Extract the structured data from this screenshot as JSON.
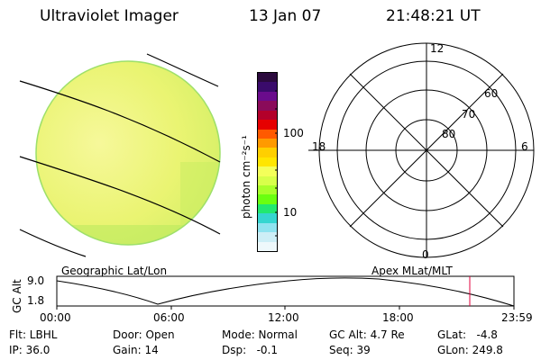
{
  "header": {
    "title": "Ultraviolet Imager",
    "date": "13 Jan 07",
    "time": "21:48:21 UT"
  },
  "colorbar": {
    "label": "photon cm⁻²s⁻¹",
    "ticks": [
      "100",
      "10"
    ],
    "colors": [
      "#2b0a3d",
      "#3a0b6b",
      "#6a0c8c",
      "#8a0b5a",
      "#b3002a",
      "#e60000",
      "#ff5a00",
      "#ff9a00",
      "#ffcf00",
      "#ffe600",
      "#f4ff5a",
      "#d8ff4a",
      "#a8ff2a",
      "#6aff10",
      "#22e870",
      "#35d6d0",
      "#8fe3ef",
      "#cdeef6",
      "#eef8fb"
    ]
  },
  "left_map": {
    "label": "Geographic Lat/Lon"
  },
  "polar": {
    "label": "Apex MLat/MLT",
    "mlt_labels": [
      "12",
      "18",
      "6",
      "0"
    ],
    "lat_labels": [
      "60",
      "70",
      "80"
    ]
  },
  "altitude_plot": {
    "ylabel": "GC Alt",
    "ytick_top": "9.0",
    "ytick_bottom": "1.8",
    "xticks": [
      "00:00",
      "06:00",
      "12:00",
      "18:00",
      "23:59"
    ]
  },
  "info": {
    "flt": "Flt: LBHL",
    "ip": "IP: 36.0",
    "door": "Door: Open",
    "gain": "Gain: 14",
    "mode": "Mode: Normal",
    "dsp": "Dsp:   -0.1",
    "gcalt": "GC Alt: 4.7 Re",
    "seq": "Seq: 39",
    "glat": "GLat:   -4.8",
    "glon": "GLon: 249.8"
  },
  "accent": {
    "marker": "#e0003c",
    "disk_fill": "#ecf57a",
    "disk_edge": "#9ee06a"
  }
}
